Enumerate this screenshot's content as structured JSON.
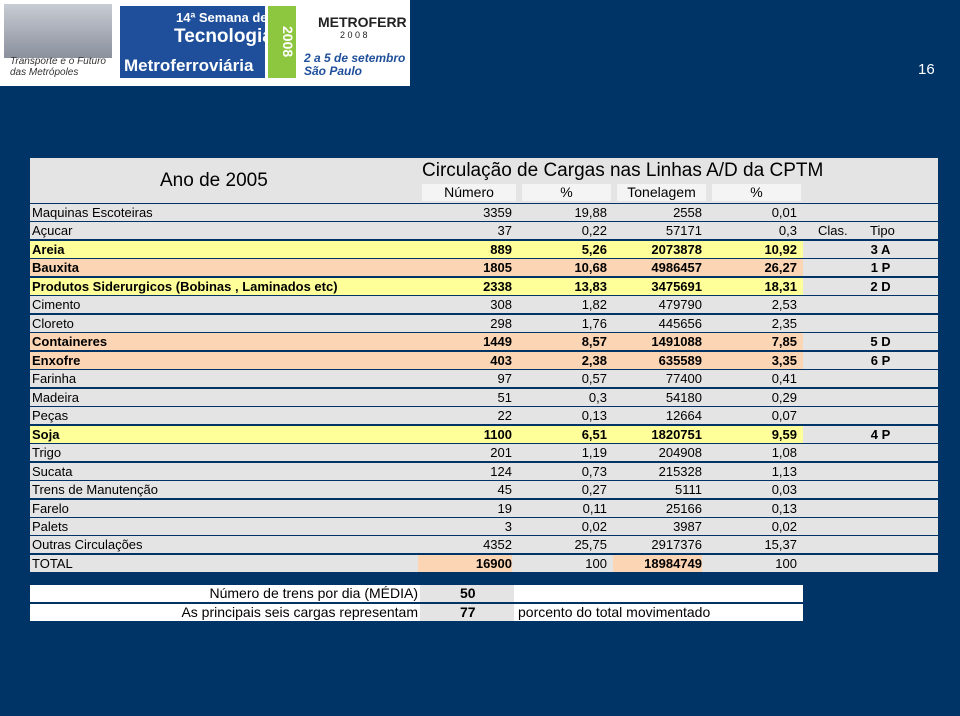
{
  "header": {
    "logo_left": [
      "Transporte e o Futuro",
      "das Metrópoles"
    ],
    "event": [
      "14ª Semana de",
      "Tecnologia",
      "Metroferroviária"
    ],
    "year": "2008",
    "brand": [
      "METROFERR",
      "2 0 0 8"
    ],
    "dates": [
      "2 a 5 de setembro",
      "São Paulo"
    ],
    "page_number": "16"
  },
  "table": {
    "year_title": "Ano de 2005",
    "title": "Circulação de Cargas nas Linhas A/D da CPTM",
    "columns": [
      "Número",
      "%",
      "Tonelagem",
      "%"
    ],
    "class_headers": [
      "Clas.",
      "Tipo"
    ],
    "rows": [
      [
        "Maquinas Escoteiras",
        "3359",
        "19,88",
        "2558",
        "0,01",
        ""
      ],
      [
        "Açucar",
        "37",
        "0,22",
        "57171",
        "0,3",
        ""
      ],
      [
        "Areia",
        "889",
        "5,26",
        "2073878",
        "10,92",
        "3 A"
      ],
      [
        "Bauxita",
        "1805",
        "10,68",
        "4986457",
        "26,27",
        "1 P"
      ],
      [
        "Produtos Siderurgicos (Bobinas ,  Laminados etc)",
        "2338",
        "13,83",
        "3475691",
        "18,31",
        "2 D"
      ],
      [
        "Cimento",
        "308",
        "1,82",
        "479790",
        "2,53",
        ""
      ],
      [
        "Cloreto",
        "298",
        "1,76",
        "445656",
        "2,35",
        ""
      ],
      [
        "Containeres",
        "1449",
        "8,57",
        "1491088",
        "7,85",
        "5 D"
      ],
      [
        "Enxofre",
        "403",
        "2,38",
        "635589",
        "3,35",
        "6 P"
      ],
      [
        "Farinha",
        "97",
        "0,57",
        "77400",
        "0,41",
        ""
      ],
      [
        "Madeira",
        "51",
        "0,3",
        "54180",
        "0,29",
        ""
      ],
      [
        "Peças",
        "22",
        "0,13",
        "12664",
        "0,07",
        ""
      ],
      [
        "Soja",
        "1100",
        "6,51",
        "1820751",
        "9,59",
        "4 P"
      ],
      [
        "Trigo",
        "201",
        "1,19",
        "204908",
        "1,08",
        ""
      ],
      [
        "Sucata",
        "124",
        "0,73",
        "215328",
        "1,13",
        ""
      ],
      [
        "Trens de Manutenção",
        "45",
        "0,27",
        "5111",
        "0,03",
        ""
      ],
      [
        "Farelo",
        "19",
        "0,11",
        "25166",
        "0,13",
        ""
      ],
      [
        "Palets",
        "3",
        "0,02",
        "3987",
        "0,02",
        ""
      ],
      [
        "Outras Circulações",
        "4352",
        "25,75",
        "2917376",
        "15,37",
        ""
      ],
      [
        "TOTAL",
        "16900",
        "100",
        "18984749",
        "100",
        ""
      ]
    ],
    "row_colors": [
      null,
      null,
      "#ffff99",
      "#fcd5b4",
      "#ffff99",
      null,
      null,
      "#fcd5b4",
      "#fcd5b4",
      null,
      null,
      null,
      "#ffff99",
      null,
      null,
      null,
      null,
      null,
      null,
      null
    ],
    "footer": [
      [
        "Número de trens por dia (MÉDIA)",
        "50",
        ""
      ],
      [
        "As principais seis cargas representam",
        "77",
        "porcento do total movimentado"
      ]
    ]
  }
}
